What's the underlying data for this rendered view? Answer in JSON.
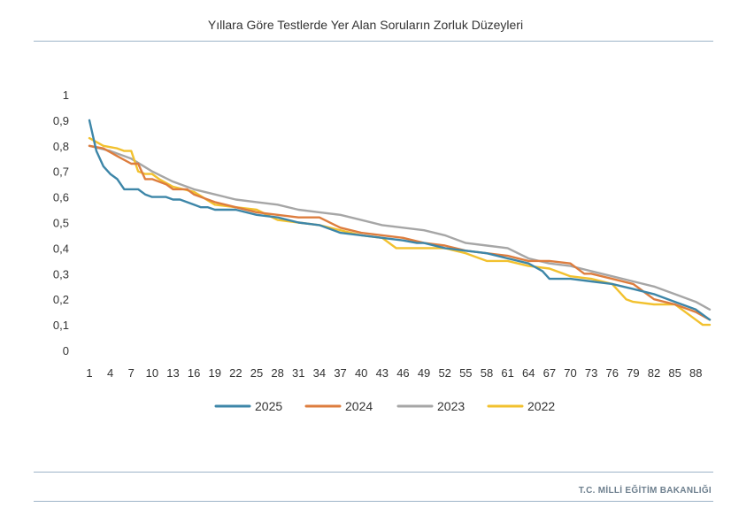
{
  "header": {
    "title": "Yıllara Göre Testlerde Yer Alan Soruların Zorluk Düzeyleri"
  },
  "footer": {
    "text": "T.C. MİLLİ EĞİTİM BAKANLIĞI"
  },
  "chart_data": {
    "type": "line",
    "title": "Yıllara Göre Testlerde Yer Alan Soruların Zorluk Düzeyleri",
    "xlabel": "",
    "ylabel": "",
    "ylim": [
      0,
      1
    ],
    "yticks": [
      "0",
      "0,1",
      "0,2",
      "0,3",
      "0,4",
      "0,5",
      "0,6",
      "0,7",
      "0,8",
      "0,9",
      "1"
    ],
    "x_ticks": [
      1,
      4,
      7,
      10,
      13,
      16,
      19,
      22,
      25,
      28,
      31,
      34,
      37,
      40,
      43,
      46,
      49,
      52,
      55,
      58,
      61,
      64,
      67,
      70,
      73,
      76,
      79,
      82,
      85,
      88
    ],
    "x_range": [
      1,
      90
    ],
    "grid": false,
    "legend_position": "bottom",
    "series": [
      {
        "name": "2025",
        "color": "#3d86a8",
        "points": [
          [
            1,
            0.9
          ],
          [
            2,
            0.78
          ],
          [
            3,
            0.72
          ],
          [
            4,
            0.69
          ],
          [
            5,
            0.67
          ],
          [
            6,
            0.63
          ],
          [
            7,
            0.63
          ],
          [
            8,
            0.63
          ],
          [
            9,
            0.61
          ],
          [
            10,
            0.6
          ],
          [
            11,
            0.6
          ],
          [
            12,
            0.6
          ],
          [
            13,
            0.59
          ],
          [
            14,
            0.59
          ],
          [
            16,
            0.57
          ],
          [
            17,
            0.56
          ],
          [
            18,
            0.56
          ],
          [
            19,
            0.55
          ],
          [
            22,
            0.55
          ],
          [
            25,
            0.53
          ],
          [
            28,
            0.52
          ],
          [
            31,
            0.5
          ],
          [
            34,
            0.49
          ],
          [
            37,
            0.46
          ],
          [
            40,
            0.45
          ],
          [
            43,
            0.44
          ],
          [
            46,
            0.43
          ],
          [
            48,
            0.42
          ],
          [
            49,
            0.42
          ],
          [
            52,
            0.4
          ],
          [
            55,
            0.39
          ],
          [
            58,
            0.38
          ],
          [
            61,
            0.36
          ],
          [
            64,
            0.34
          ],
          [
            66,
            0.31
          ],
          [
            67,
            0.28
          ],
          [
            70,
            0.28
          ],
          [
            73,
            0.27
          ],
          [
            76,
            0.26
          ],
          [
            79,
            0.24
          ],
          [
            82,
            0.22
          ],
          [
            85,
            0.19
          ],
          [
            88,
            0.16
          ],
          [
            90,
            0.12
          ]
        ]
      },
      {
        "name": "2024",
        "color": "#dd7d3e",
        "points": [
          [
            1,
            0.8
          ],
          [
            3,
            0.79
          ],
          [
            5,
            0.76
          ],
          [
            7,
            0.73
          ],
          [
            8,
            0.73
          ],
          [
            9,
            0.67
          ],
          [
            10,
            0.67
          ],
          [
            12,
            0.65
          ],
          [
            13,
            0.63
          ],
          [
            15,
            0.63
          ],
          [
            16,
            0.61
          ],
          [
            19,
            0.58
          ],
          [
            22,
            0.56
          ],
          [
            25,
            0.54
          ],
          [
            28,
            0.53
          ],
          [
            31,
            0.52
          ],
          [
            34,
            0.52
          ],
          [
            37,
            0.48
          ],
          [
            40,
            0.46
          ],
          [
            43,
            0.45
          ],
          [
            46,
            0.44
          ],
          [
            49,
            0.42
          ],
          [
            52,
            0.41
          ],
          [
            55,
            0.39
          ],
          [
            58,
            0.38
          ],
          [
            61,
            0.37
          ],
          [
            64,
            0.35
          ],
          [
            67,
            0.35
          ],
          [
            70,
            0.34
          ],
          [
            72,
            0.3
          ],
          [
            73,
            0.3
          ],
          [
            76,
            0.28
          ],
          [
            79,
            0.26
          ],
          [
            81,
            0.22
          ],
          [
            82,
            0.2
          ],
          [
            85,
            0.18
          ],
          [
            88,
            0.15
          ],
          [
            90,
            0.12
          ]
        ]
      },
      {
        "name": "2023",
        "color": "#a6a6a6",
        "points": [
          [
            1,
            0.8
          ],
          [
            4,
            0.78
          ],
          [
            7,
            0.75
          ],
          [
            10,
            0.7
          ],
          [
            13,
            0.66
          ],
          [
            16,
            0.63
          ],
          [
            19,
            0.61
          ],
          [
            22,
            0.59
          ],
          [
            25,
            0.58
          ],
          [
            28,
            0.57
          ],
          [
            31,
            0.55
          ],
          [
            34,
            0.54
          ],
          [
            37,
            0.53
          ],
          [
            40,
            0.51
          ],
          [
            43,
            0.49
          ],
          [
            46,
            0.48
          ],
          [
            49,
            0.47
          ],
          [
            52,
            0.45
          ],
          [
            55,
            0.42
          ],
          [
            58,
            0.41
          ],
          [
            61,
            0.4
          ],
          [
            64,
            0.36
          ],
          [
            67,
            0.34
          ],
          [
            70,
            0.33
          ],
          [
            73,
            0.31
          ],
          [
            76,
            0.29
          ],
          [
            79,
            0.27
          ],
          [
            82,
            0.25
          ],
          [
            85,
            0.22
          ],
          [
            88,
            0.19
          ],
          [
            90,
            0.16
          ]
        ]
      },
      {
        "name": "2022",
        "color": "#f2c12e",
        "points": [
          [
            1,
            0.83
          ],
          [
            3,
            0.8
          ],
          [
            5,
            0.79
          ],
          [
            6,
            0.78
          ],
          [
            7,
            0.78
          ],
          [
            8,
            0.7
          ],
          [
            9,
            0.69
          ],
          [
            10,
            0.69
          ],
          [
            11,
            0.67
          ],
          [
            13,
            0.64
          ],
          [
            16,
            0.62
          ],
          [
            19,
            0.57
          ],
          [
            22,
            0.56
          ],
          [
            25,
            0.55
          ],
          [
            28,
            0.51
          ],
          [
            31,
            0.5
          ],
          [
            34,
            0.49
          ],
          [
            37,
            0.47
          ],
          [
            40,
            0.45
          ],
          [
            43,
            0.44
          ],
          [
            45,
            0.4
          ],
          [
            46,
            0.4
          ],
          [
            49,
            0.4
          ],
          [
            52,
            0.4
          ],
          [
            55,
            0.38
          ],
          [
            58,
            0.35
          ],
          [
            61,
            0.35
          ],
          [
            64,
            0.33
          ],
          [
            67,
            0.32
          ],
          [
            70,
            0.29
          ],
          [
            73,
            0.28
          ],
          [
            76,
            0.26
          ],
          [
            78,
            0.2
          ],
          [
            79,
            0.19
          ],
          [
            82,
            0.18
          ],
          [
            85,
            0.18
          ],
          [
            88,
            0.12
          ],
          [
            89,
            0.1
          ],
          [
            90,
            0.1
          ]
        ]
      }
    ]
  }
}
